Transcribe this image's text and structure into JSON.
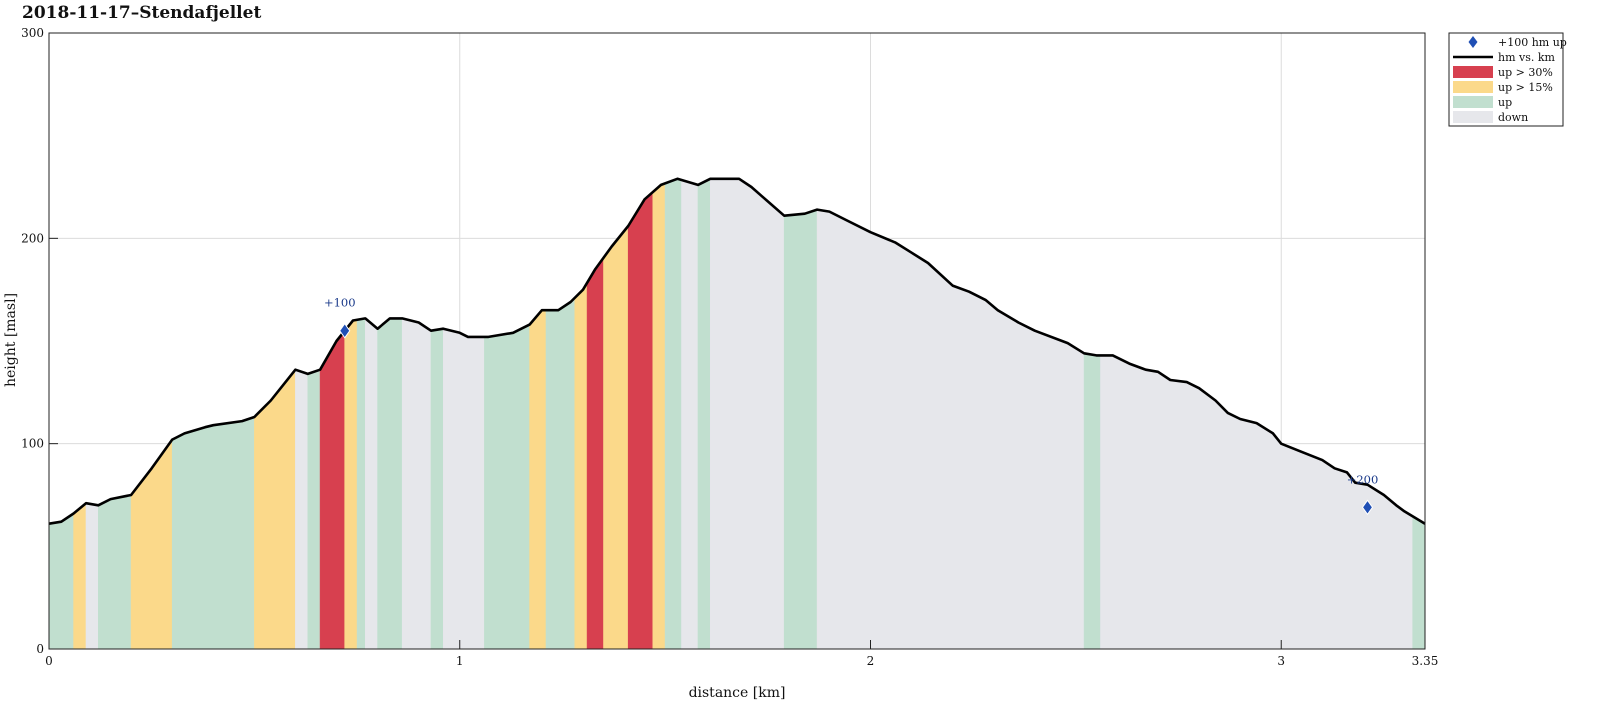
{
  "chart_data": {
    "type": "area",
    "title": "2018-11-17–Stendafjellet",
    "xlabel": "distance [km]",
    "ylabel": "height [masl]",
    "xlim": [
      0,
      3.35
    ],
    "ylim": [
      0,
      300
    ],
    "xticks": [
      {
        "v": 0,
        "label": "0"
      },
      {
        "v": 1,
        "label": "1"
      },
      {
        "v": 2,
        "label": "2"
      },
      {
        "v": 3,
        "label": "3"
      },
      {
        "v": 3.35,
        "label": "3.35"
      }
    ],
    "yticks": [
      {
        "v": 0,
        "label": "0"
      },
      {
        "v": 100,
        "label": "100"
      },
      {
        "v": 200,
        "label": "200"
      },
      {
        "v": 300,
        "label": "300"
      }
    ],
    "grid": true,
    "legend_position": "outside-top-right",
    "colors": {
      "up30": "#d7404f",
      "up15": "#fbd98a",
      "up": "#c1dfcf",
      "down": "#e6e7eb",
      "line": "#000000",
      "marker": "#1f4fb5"
    },
    "legend": [
      {
        "key": "marker",
        "label": "+100 hm up"
      },
      {
        "key": "line",
        "label": "hm vs. km"
      },
      {
        "key": "up30",
        "label": "up > 30%"
      },
      {
        "key": "up15",
        "label": "up > 15%"
      },
      {
        "key": "up",
        "label": "up"
      },
      {
        "key": "down",
        "label": "down"
      }
    ],
    "profile": [
      {
        "x": 0.0,
        "y": 61
      },
      {
        "x": 0.03,
        "y": 62
      },
      {
        "x": 0.06,
        "y": 66
      },
      {
        "x": 0.09,
        "y": 71
      },
      {
        "x": 0.12,
        "y": 70
      },
      {
        "x": 0.15,
        "y": 73
      },
      {
        "x": 0.2,
        "y": 75
      },
      {
        "x": 0.25,
        "y": 88
      },
      {
        "x": 0.3,
        "y": 102
      },
      {
        "x": 0.33,
        "y": 105
      },
      {
        "x": 0.38,
        "y": 108
      },
      {
        "x": 0.4,
        "y": 109
      },
      {
        "x": 0.47,
        "y": 111
      },
      {
        "x": 0.5,
        "y": 113
      },
      {
        "x": 0.54,
        "y": 121
      },
      {
        "x": 0.6,
        "y": 136
      },
      {
        "x": 0.63,
        "y": 134
      },
      {
        "x": 0.66,
        "y": 136
      },
      {
        "x": 0.7,
        "y": 150
      },
      {
        "x": 0.74,
        "y": 160
      },
      {
        "x": 0.77,
        "y": 161
      },
      {
        "x": 0.8,
        "y": 156
      },
      {
        "x": 0.83,
        "y": 161
      },
      {
        "x": 0.86,
        "y": 161
      },
      {
        "x": 0.9,
        "y": 159
      },
      {
        "x": 0.93,
        "y": 155
      },
      {
        "x": 0.96,
        "y": 156
      },
      {
        "x": 1.0,
        "y": 154
      },
      {
        "x": 1.02,
        "y": 152
      },
      {
        "x": 1.07,
        "y": 152
      },
      {
        "x": 1.13,
        "y": 154
      },
      {
        "x": 1.17,
        "y": 158
      },
      {
        "x": 1.2,
        "y": 165
      },
      {
        "x": 1.24,
        "y": 165
      },
      {
        "x": 1.27,
        "y": 169
      },
      {
        "x": 1.3,
        "y": 175
      },
      {
        "x": 1.33,
        "y": 185
      },
      {
        "x": 1.37,
        "y": 196
      },
      {
        "x": 1.41,
        "y": 206
      },
      {
        "x": 1.45,
        "y": 219
      },
      {
        "x": 1.49,
        "y": 226
      },
      {
        "x": 1.53,
        "y": 229
      },
      {
        "x": 1.58,
        "y": 226
      },
      {
        "x": 1.61,
        "y": 229
      },
      {
        "x": 1.68,
        "y": 229
      },
      {
        "x": 1.71,
        "y": 225
      },
      {
        "x": 1.75,
        "y": 218
      },
      {
        "x": 1.79,
        "y": 211
      },
      {
        "x": 1.84,
        "y": 212
      },
      {
        "x": 1.87,
        "y": 214
      },
      {
        "x": 1.9,
        "y": 213
      },
      {
        "x": 1.94,
        "y": 209
      },
      {
        "x": 2.0,
        "y": 203
      },
      {
        "x": 2.06,
        "y": 198
      },
      {
        "x": 2.1,
        "y": 193
      },
      {
        "x": 2.14,
        "y": 188
      },
      {
        "x": 2.2,
        "y": 177
      },
      {
        "x": 2.24,
        "y": 174
      },
      {
        "x": 2.28,
        "y": 170
      },
      {
        "x": 2.31,
        "y": 165
      },
      {
        "x": 2.36,
        "y": 159
      },
      {
        "x": 2.4,
        "y": 155
      },
      {
        "x": 2.48,
        "y": 149
      },
      {
        "x": 2.52,
        "y": 144
      },
      {
        "x": 2.55,
        "y": 143
      },
      {
        "x": 2.59,
        "y": 143
      },
      {
        "x": 2.63,
        "y": 139
      },
      {
        "x": 2.67,
        "y": 136
      },
      {
        "x": 2.7,
        "y": 135
      },
      {
        "x": 2.73,
        "y": 131
      },
      {
        "x": 2.77,
        "y": 130
      },
      {
        "x": 2.8,
        "y": 127
      },
      {
        "x": 2.84,
        "y": 121
      },
      {
        "x": 2.87,
        "y": 115
      },
      {
        "x": 2.9,
        "y": 112
      },
      {
        "x": 2.94,
        "y": 110
      },
      {
        "x": 2.98,
        "y": 105
      },
      {
        "x": 3.0,
        "y": 100
      },
      {
        "x": 3.05,
        "y": 96
      },
      {
        "x": 3.1,
        "y": 92
      },
      {
        "x": 3.13,
        "y": 88
      },
      {
        "x": 3.16,
        "y": 86
      },
      {
        "x": 3.18,
        "y": 81
      },
      {
        "x": 3.21,
        "y": 80
      },
      {
        "x": 3.25,
        "y": 75
      },
      {
        "x": 3.28,
        "y": 70
      },
      {
        "x": 3.3,
        "y": 67
      },
      {
        "x": 3.35,
        "y": 61
      }
    ],
    "segments": [
      {
        "x0": 0.0,
        "x1": 0.06,
        "cat": "up"
      },
      {
        "x0": 0.06,
        "x1": 0.09,
        "cat": "up15"
      },
      {
        "x0": 0.09,
        "x1": 0.12,
        "cat": "down"
      },
      {
        "x0": 0.12,
        "x1": 0.2,
        "cat": "up"
      },
      {
        "x0": 0.2,
        "x1": 0.3,
        "cat": "up15"
      },
      {
        "x0": 0.3,
        "x1": 0.5,
        "cat": "up"
      },
      {
        "x0": 0.5,
        "x1": 0.6,
        "cat": "up15"
      },
      {
        "x0": 0.6,
        "x1": 0.63,
        "cat": "down"
      },
      {
        "x0": 0.63,
        "x1": 0.66,
        "cat": "up"
      },
      {
        "x0": 0.66,
        "x1": 0.72,
        "cat": "up30"
      },
      {
        "x0": 0.72,
        "x1": 0.75,
        "cat": "up15"
      },
      {
        "x0": 0.75,
        "x1": 0.77,
        "cat": "up"
      },
      {
        "x0": 0.77,
        "x1": 0.8,
        "cat": "down"
      },
      {
        "x0": 0.8,
        "x1": 0.86,
        "cat": "up"
      },
      {
        "x0": 0.86,
        "x1": 0.93,
        "cat": "down"
      },
      {
        "x0": 0.93,
        "x1": 0.96,
        "cat": "up"
      },
      {
        "x0": 0.96,
        "x1": 1.06,
        "cat": "down"
      },
      {
        "x0": 1.06,
        "x1": 1.17,
        "cat": "up"
      },
      {
        "x0": 1.17,
        "x1": 1.21,
        "cat": "up15"
      },
      {
        "x0": 1.21,
        "x1": 1.28,
        "cat": "up"
      },
      {
        "x0": 1.28,
        "x1": 1.31,
        "cat": "up15"
      },
      {
        "x0": 1.31,
        "x1": 1.35,
        "cat": "up30"
      },
      {
        "x0": 1.35,
        "x1": 1.41,
        "cat": "up15"
      },
      {
        "x0": 1.41,
        "x1": 1.47,
        "cat": "up30"
      },
      {
        "x0": 1.47,
        "x1": 1.5,
        "cat": "up15"
      },
      {
        "x0": 1.5,
        "x1": 1.54,
        "cat": "up"
      },
      {
        "x0": 1.54,
        "x1": 1.58,
        "cat": "down"
      },
      {
        "x0": 1.58,
        "x1": 1.61,
        "cat": "up"
      },
      {
        "x0": 1.61,
        "x1": 1.79,
        "cat": "down"
      },
      {
        "x0": 1.79,
        "x1": 1.87,
        "cat": "up"
      },
      {
        "x0": 1.87,
        "x1": 2.52,
        "cat": "down"
      },
      {
        "x0": 2.52,
        "x1": 2.56,
        "cat": "up"
      },
      {
        "x0": 2.56,
        "x1": 3.32,
        "cat": "down"
      },
      {
        "x0": 3.32,
        "x1": 3.35,
        "cat": "up"
      }
    ],
    "markers": [
      {
        "x": 0.72,
        "y": 155,
        "label": "+100"
      },
      {
        "x": 3.21,
        "y": 69,
        "label": "+200"
      }
    ]
  }
}
